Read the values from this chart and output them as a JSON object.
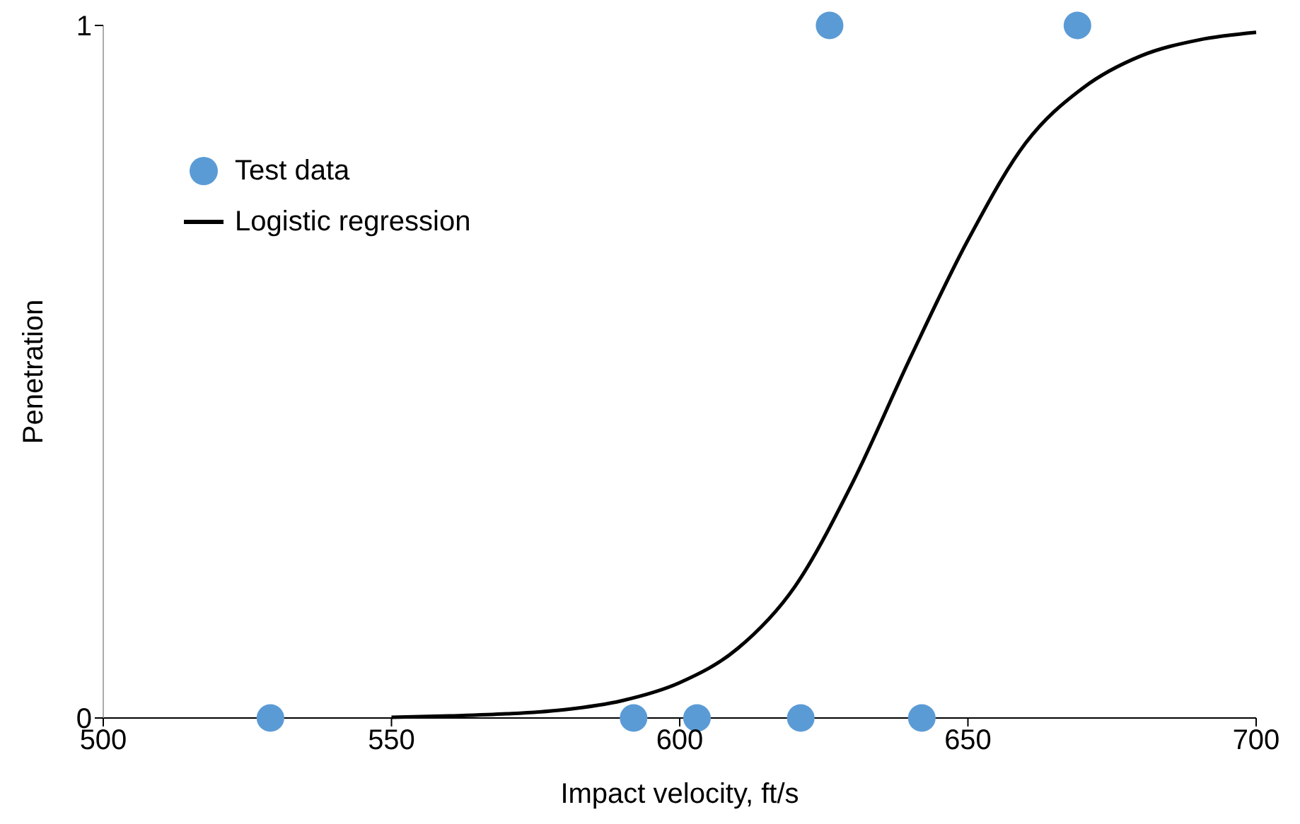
{
  "chart_data": {
    "type": "scatter",
    "xlabel": "Impact velocity, ft/s",
    "ylabel": "Penetration",
    "xlim": [
      500,
      700
    ],
    "xticks": [
      500,
      550,
      600,
      650,
      700
    ],
    "ylim": [
      0,
      1
    ],
    "yticks": [
      0,
      1
    ],
    "grid": false,
    "legend": "top left",
    "series": [
      {
        "name": "Test data",
        "color": "#5b9bd5",
        "marker": "circle",
        "x": [
          529,
          592,
          603,
          621,
          642,
          626,
          669
        ],
        "values": [
          0,
          0,
          0,
          0,
          0,
          1,
          1
        ]
      },
      {
        "name": "Logistic regression",
        "type": "line",
        "color": "#000000",
        "marker": "none",
        "line_style": "solid",
        "x": [
          550,
          560,
          570,
          580,
          590,
          600,
          610,
          620,
          630,
          640,
          650,
          660,
          670,
          680,
          690,
          700
        ],
        "values": [
          0.001,
          0.003,
          0.006,
          0.012,
          0.025,
          0.051,
          0.1,
          0.19,
          0.34,
          0.52,
          0.69,
          0.83,
          0.91,
          0.956,
          0.979,
          0.99
        ]
      }
    ]
  }
}
